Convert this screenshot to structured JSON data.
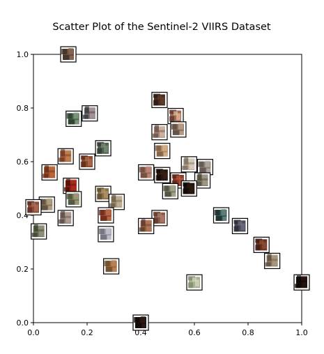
{
  "chart_data": {
    "type": "scatter",
    "title": "Scatter Plot of the Sentinel-2 VIIRS Dataset",
    "xlabel": "",
    "ylabel": "",
    "xlim": [
      0.0,
      1.0
    ],
    "ylim": [
      0.0,
      1.0
    ],
    "xticks": [
      "0.0",
      "0.2",
      "0.4",
      "0.6",
      "0.8",
      "1.0"
    ],
    "yticks": [
      "0.0",
      "0.2",
      "0.4",
      "0.6",
      "0.8",
      "1.0"
    ],
    "grid": false,
    "marker": "image-thumbnail",
    "points": [
      {
        "x": 0.13,
        "y": 1.0,
        "colors": [
          "#3a2e25",
          "#6b5040",
          "#8a6a55"
        ]
      },
      {
        "x": 0.47,
        "y": 0.83,
        "colors": [
          "#2a1a14",
          "#4a2e22",
          "#6a3e2a"
        ]
      },
      {
        "x": 0.21,
        "y": 0.78,
        "colors": [
          "#2c3a3c",
          "#7a6a6a",
          "#b0a0a8"
        ]
      },
      {
        "x": 0.15,
        "y": 0.76,
        "colors": [
          "#2a3a2c",
          "#4e6a50",
          "#8aa08a"
        ]
      },
      {
        "x": 0.53,
        "y": 0.77,
        "colors": [
          "#5a3528",
          "#a06a50",
          "#e0c0a0"
        ]
      },
      {
        "x": 0.47,
        "y": 0.71,
        "colors": [
          "#6a5048",
          "#a08070",
          "#d8c0b0"
        ]
      },
      {
        "x": 0.54,
        "y": 0.72,
        "colors": [
          "#5a4a40",
          "#8a7060",
          "#c0a890"
        ]
      },
      {
        "x": 0.26,
        "y": 0.65,
        "colors": [
          "#283828",
          "#506050",
          "#80907a"
        ]
      },
      {
        "x": 0.12,
        "y": 0.62,
        "colors": [
          "#6a3a25",
          "#a05a3a",
          "#c88a5a"
        ]
      },
      {
        "x": 0.48,
        "y": 0.64,
        "colors": [
          "#7a5a40",
          "#b08a60",
          "#d8b890"
        ]
      },
      {
        "x": 0.2,
        "y": 0.6,
        "colors": [
          "#5a2a1a",
          "#8a4a30",
          "#b07050"
        ]
      },
      {
        "x": 0.06,
        "y": 0.56,
        "colors": [
          "#6a2a18",
          "#9a4a28",
          "#c07040"
        ]
      },
      {
        "x": 0.42,
        "y": 0.56,
        "colors": [
          "#6a4a3a",
          "#9a6a5a",
          "#c09080"
        ]
      },
      {
        "x": 0.48,
        "y": 0.55,
        "colors": [
          "#100806",
          "#281812",
          "#3a2218"
        ]
      },
      {
        "x": 0.58,
        "y": 0.59,
        "colors": [
          "#7a6a5a",
          "#b0a090",
          "#e0d8c8"
        ]
      },
      {
        "x": 0.64,
        "y": 0.58,
        "colors": [
          "#5a5048",
          "#8a8078",
          "#b8b0a8"
        ]
      },
      {
        "x": 0.54,
        "y": 0.53,
        "colors": [
          "#5a2418",
          "#8a3a28",
          "#b05a40"
        ]
      },
      {
        "x": 0.63,
        "y": 0.53,
        "colors": [
          "#4a4838",
          "#7a7060",
          "#a8a090"
        ]
      },
      {
        "x": 0.51,
        "y": 0.49,
        "colors": [
          "#4a4a3a",
          "#7a7a68",
          "#b0b098"
        ]
      },
      {
        "x": 0.58,
        "y": 0.5,
        "colors": [
          "#0e0806",
          "#1e120c",
          "#2e1c12"
        ]
      },
      {
        "x": 0.14,
        "y": 0.51,
        "colors": [
          "#4a0e08",
          "#8a1e12",
          "#b03020"
        ]
      },
      {
        "x": 0.15,
        "y": 0.46,
        "colors": [
          "#4a5038",
          "#7a7a58",
          "#a8a080"
        ]
      },
      {
        "x": 0.26,
        "y": 0.48,
        "colors": [
          "#5a4a2a",
          "#8a7048",
          "#b09870"
        ]
      },
      {
        "x": 0.31,
        "y": 0.45,
        "colors": [
          "#6a5a4a",
          "#9a8a70",
          "#c8b898"
        ]
      },
      {
        "x": 0.05,
        "y": 0.44,
        "colors": [
          "#5a4a3a",
          "#8a7a60",
          "#b8a888"
        ]
      },
      {
        "x": 0.0,
        "y": 0.43,
        "colors": [
          "#5a2a20",
          "#8a4a38",
          "#b07058"
        ]
      },
      {
        "x": 0.12,
        "y": 0.39,
        "colors": [
          "#5a4a44",
          "#8a7870",
          "#b8a8a0"
        ]
      },
      {
        "x": 0.27,
        "y": 0.4,
        "colors": [
          "#6a2a18",
          "#9a4a30",
          "#c07050"
        ]
      },
      {
        "x": 0.47,
        "y": 0.39,
        "colors": [
          "#5a3a2a",
          "#8a5a48",
          "#b08070"
        ]
      },
      {
        "x": 0.42,
        "y": 0.36,
        "colors": [
          "#5a3a2a",
          "#8a5a40",
          "#b88060"
        ]
      },
      {
        "x": 0.7,
        "y": 0.4,
        "colors": [
          "#1a2a2a",
          "#3a5a58",
          "#6a8a88"
        ]
      },
      {
        "x": 0.77,
        "y": 0.36,
        "colors": [
          "#2a2a30",
          "#4a4a58",
          "#707088"
        ]
      },
      {
        "x": 0.02,
        "y": 0.34,
        "colors": [
          "#3a4030",
          "#6a7058",
          "#989a80"
        ]
      },
      {
        "x": 0.27,
        "y": 0.33,
        "colors": [
          "#6a6a78",
          "#9a9aa8",
          "#c8c8d0"
        ]
      },
      {
        "x": 0.85,
        "y": 0.29,
        "colors": [
          "#3a1a10",
          "#6a3020",
          "#905038"
        ]
      },
      {
        "x": 0.89,
        "y": 0.23,
        "colors": [
          "#5a4a3a",
          "#8a7a60",
          "#b0a080"
        ]
      },
      {
        "x": 0.29,
        "y": 0.21,
        "colors": [
          "#6a4a2a",
          "#9a6a40",
          "#c08a60"
        ]
      },
      {
        "x": 0.6,
        "y": 0.15,
        "colors": [
          "#7a8a6a",
          "#a8b090",
          "#d8d8c0"
        ]
      },
      {
        "x": 1.0,
        "y": 0.15,
        "colors": [
          "#080404",
          "#180c08",
          "#281610"
        ]
      },
      {
        "x": 0.4,
        "y": 0.0,
        "colors": [
          "#0e0806",
          "#1e120c",
          "#2e1c14"
        ]
      }
    ]
  }
}
